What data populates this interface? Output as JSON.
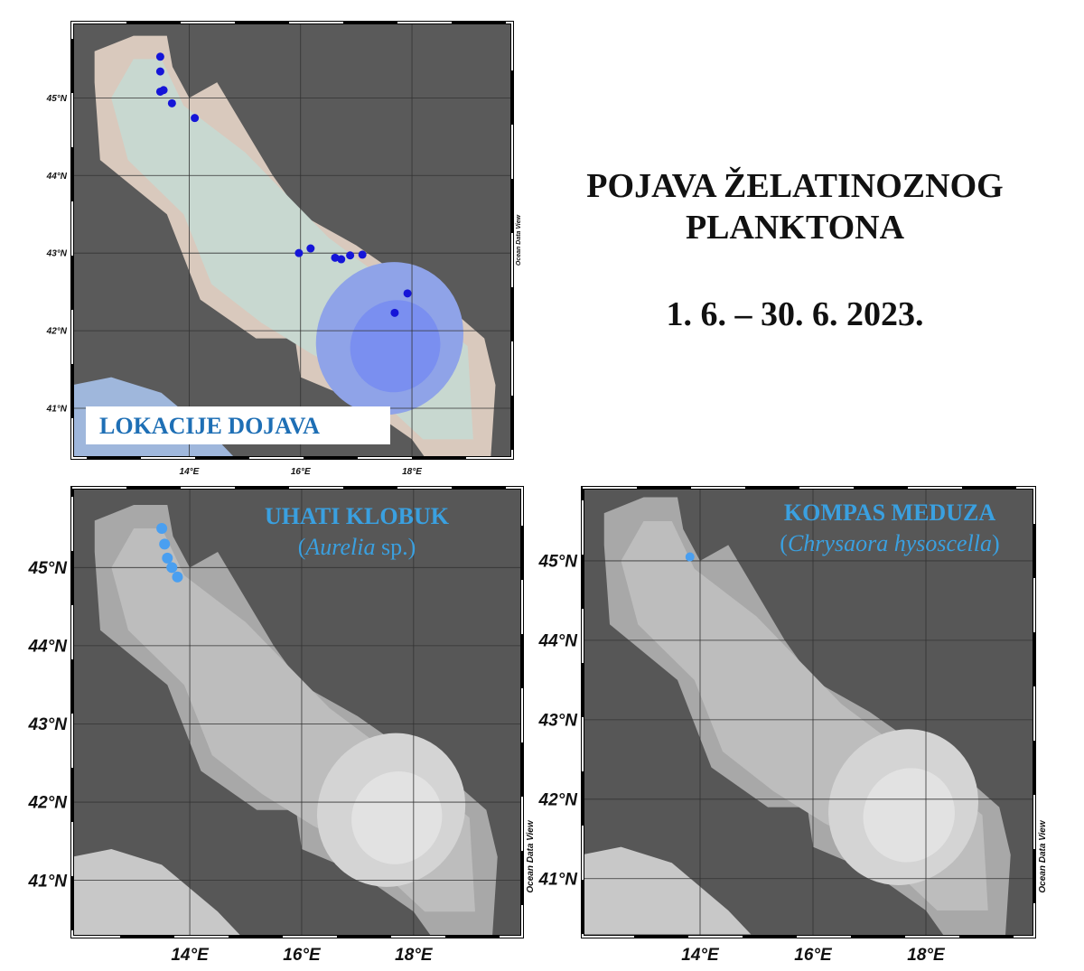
{
  "header": {
    "title_lines": [
      "POJAVA ŽELATINOZNOG",
      "PLANKTONA"
    ],
    "date": "1. 6. – 30. 6. 2023."
  },
  "maps": [
    {
      "label": "LOKACIJE DOJAVA",
      "source": "Ocean Data View",
      "xlim": [
        11.9,
        19.8
      ],
      "ylim": [
        40.36,
        45.97
      ],
      "xticks": [
        {
          "value": 14,
          "label": "14°E"
        },
        {
          "value": 16,
          "label": "16°E"
        },
        {
          "value": 18,
          "label": "18°E"
        }
      ],
      "yticks": [
        {
          "value": 41,
          "label": "41°N"
        },
        {
          "value": 42,
          "label": "42°N"
        },
        {
          "value": 43,
          "label": "43°N"
        },
        {
          "value": 44,
          "label": "44°N"
        },
        {
          "value": 45,
          "label": "45°N"
        }
      ],
      "points": {
        "lon": [
          13.48,
          13.48,
          13.48,
          13.54,
          13.69,
          14.1,
          15.97,
          16.18,
          16.62,
          16.73,
          16.89,
          17.11,
          17.92,
          17.69
        ],
        "lat": [
          45.53,
          45.34,
          45.08,
          45.1,
          44.93,
          44.74,
          43.0,
          43.06,
          42.94,
          42.92,
          42.97,
          42.98,
          42.48,
          42.23
        ]
      }
    },
    {
      "label": "UHATI KLOBUK",
      "species": [
        "(",
        "Aurelia",
        " sp.)"
      ],
      "source": "Ocean Data View",
      "xlim": [
        11.9,
        19.94
      ],
      "ylim": [
        40.28,
        46.02
      ],
      "xticks": [
        {
          "value": 14,
          "label": "14°E"
        },
        {
          "value": 16,
          "label": "16°E"
        },
        {
          "value": 18,
          "label": "18°E"
        }
      ],
      "yticks": [
        {
          "value": 41,
          "label": "41°N"
        },
        {
          "value": 42,
          "label": "42°N"
        },
        {
          "value": 43,
          "label": "43°N"
        },
        {
          "value": 44,
          "label": "44°N"
        },
        {
          "value": 45,
          "label": "45°N"
        }
      ],
      "points": {
        "lon": [
          13.5,
          13.55,
          13.6,
          13.68,
          13.78
        ],
        "lat": [
          45.5,
          45.3,
          45.12,
          45.0,
          44.88
        ]
      }
    },
    {
      "label": "KOMPAS MEDUZA",
      "species": [
        "(",
        "Chrysaora hysoscella",
        ")"
      ],
      "source": "Ocean Data View",
      "xlim": [
        11.92,
        19.92
      ],
      "ylim": [
        40.27,
        45.92
      ],
      "xticks": [
        {
          "value": 14,
          "label": "14°E"
        },
        {
          "value": 16,
          "label": "16°E"
        },
        {
          "value": 18,
          "label": "18°E"
        }
      ],
      "yticks": [
        {
          "value": 41,
          "label": "41°N"
        },
        {
          "value": 42,
          "label": "42°N"
        },
        {
          "value": 43,
          "label": "43°N"
        },
        {
          "value": 44,
          "label": "44°N"
        },
        {
          "value": 45,
          "label": "45°N"
        }
      ],
      "points": {
        "lon": [
          13.82
        ],
        "lat": [
          45.05
        ]
      }
    }
  ]
}
